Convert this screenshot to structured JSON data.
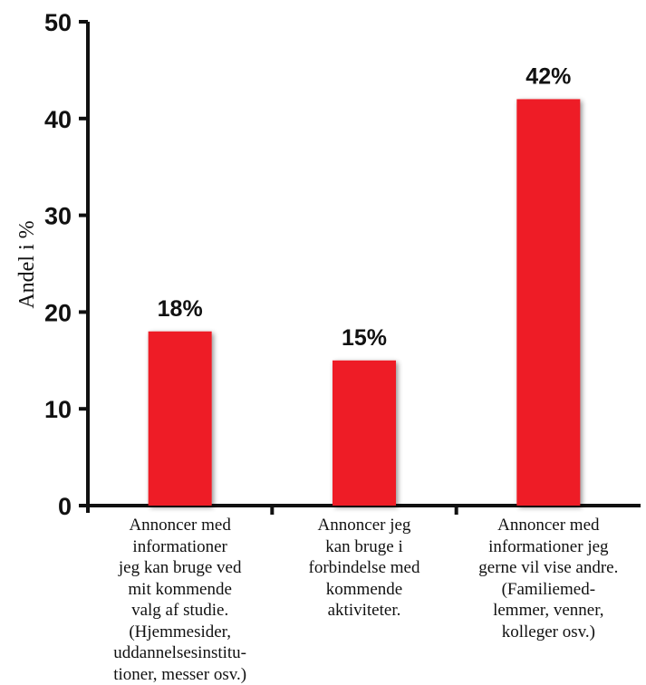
{
  "chart_data": {
    "type": "bar",
    "ylabel": "Andel i %",
    "xlabel": "",
    "ylim": [
      0,
      50
    ],
    "yticks": [
      0,
      10,
      20,
      30,
      40,
      50
    ],
    "grid": false,
    "categories": [
      "Annoncer med\ninformationer\njeg kan bruge ved\nmit kommende\nvalg af studie.\n(Hjemmesider,\nuddannelsesinstitu-\ntioner, messer osv.)",
      "Annoncer jeg\nkan bruge i\nforbindelse med\nkommende\naktiviteter.",
      "Annoncer med\ninformationer jeg\ngerne vil vise andre.\n(Familiemed-\nlemmer, venner,\nkolleger osv.)"
    ],
    "values": [
      18,
      15,
      42
    ],
    "value_labels": [
      "18%",
      "15%",
      "42%"
    ],
    "bar_color": "#ee1c25"
  }
}
